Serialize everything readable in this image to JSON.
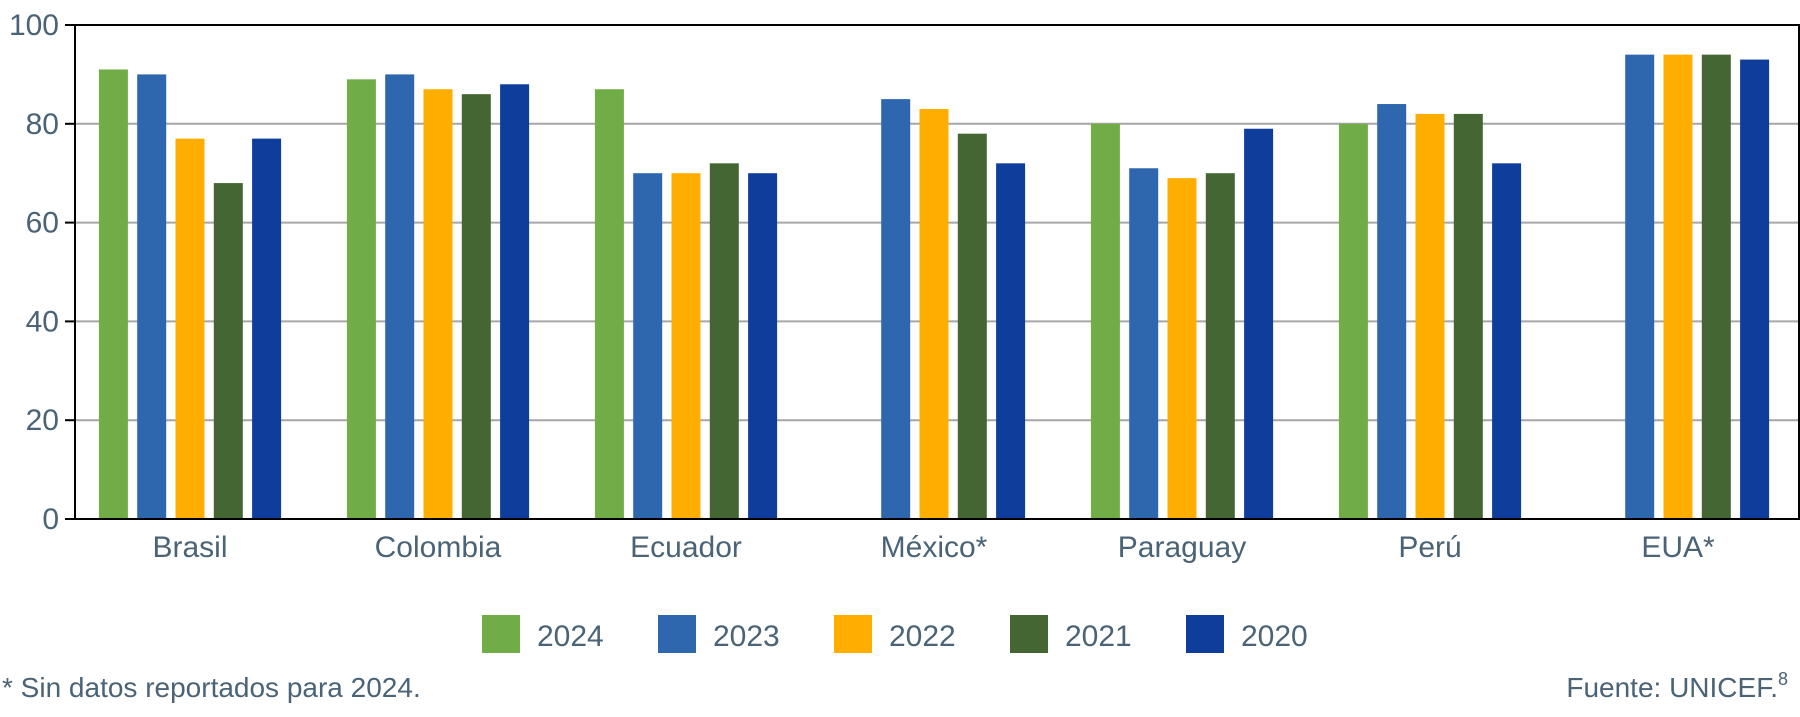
{
  "chart_data": {
    "type": "bar",
    "categories": [
      "Brasil",
      "Colombia",
      "Ecuador",
      "México*",
      "Paraguay",
      "Perú",
      "EUA*"
    ],
    "series": [
      {
        "name": "2024",
        "color": "#70ad47",
        "values": [
          91,
          89,
          87,
          null,
          80,
          80,
          null
        ]
      },
      {
        "name": "2023",
        "color": "#2e67ad",
        "values": [
          90,
          90,
          70,
          85,
          71,
          84,
          94
        ]
      },
      {
        "name": "2022",
        "color": "#ffae00",
        "values": [
          77,
          87,
          70,
          83,
          69,
          82,
          94
        ]
      },
      {
        "name": "2021",
        "color": "#446632",
        "values": [
          68,
          86,
          72,
          78,
          70,
          82,
          94
        ]
      },
      {
        "name": "2020",
        "color": "#0e3d9c",
        "values": [
          77,
          88,
          70,
          72,
          79,
          72,
          93
        ]
      }
    ],
    "ylim": [
      0,
      100
    ],
    "yticks": [
      0,
      20,
      40,
      60,
      80,
      100
    ],
    "grid": true,
    "legend_position": "bottom-center",
    "footnote": "* Sin datos reportados para 2024.",
    "source": "Fuente: UNICEF.",
    "source_ref": "8"
  }
}
